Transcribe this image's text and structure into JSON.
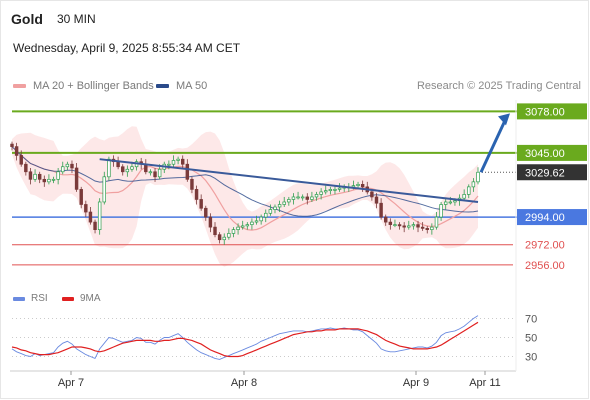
{
  "header": {
    "title": "Gold",
    "timeframe": "30 MIN",
    "datetime": "Wednesday, April 9, 2025 8:55:34 AM CET"
  },
  "legend": {
    "ma20": "MA 20 + Bollinger Bands",
    "ma50": "MA 50",
    "credit": "Research © 2025 Trading Central"
  },
  "rsi_legend": {
    "rsi": "RSI",
    "ma": "9MA"
  },
  "colors": {
    "resistance": "#6aaa1e",
    "support": "#4a78e0",
    "minor_support": "#e05050",
    "last_price": "#333333",
    "ma20": "#f0a0a0",
    "ma50": "#2a4a8a",
    "trendline": "#3a5a9a",
    "candle_up": "#2e9e4e",
    "candle_down": "#7a3a3a",
    "rsi": "#6a8ae0",
    "rsi_ma": "#e02020",
    "arrow": "#2a63b0"
  },
  "chart_data": [
    {
      "type": "candlestick",
      "title": "Gold",
      "x_labels": [
        "Apr 7",
        "Apr 8",
        "Apr 9",
        "Apr 11"
      ],
      "ylim": [
        2940,
        3095
      ],
      "levels": [
        {
          "value": 3078.0,
          "label": "3078.00",
          "kind": "resistance"
        },
        {
          "value": 3045.0,
          "label": "3045.00",
          "kind": "resistance"
        },
        {
          "value": 3029.62,
          "label": "3029.62",
          "kind": "last_price"
        },
        {
          "value": 2994.0,
          "label": "2994.00",
          "kind": "support"
        },
        {
          "value": 2972.0,
          "label": "2972.00",
          "kind": "minor_support"
        },
        {
          "value": 2956.0,
          "label": "2956.00",
          "kind": "minor_support"
        }
      ],
      "closes": [
        3050,
        3043,
        3036,
        3030,
        3024,
        3028,
        3024,
        3022,
        3024,
        3024,
        3030,
        3034,
        3036,
        3033,
        3016,
        3004,
        2998,
        2990,
        2984,
        3006,
        3026,
        3040,
        3038,
        3034,
        3030,
        3032,
        3034,
        3038,
        3036,
        3030,
        3030,
        3026,
        3032,
        3036,
        3036,
        3039,
        3040,
        3036,
        3024,
        3016,
        3008,
        3001,
        2994,
        2986,
        2980,
        2976,
        2978,
        2981,
        2984,
        2986,
        2987,
        2988,
        2990,
        2991,
        2994,
        2997,
        3000,
        3002,
        3004,
        3006,
        3008,
        3010,
        3010,
        3010,
        3008,
        3010,
        3012,
        3014,
        3015,
        3016,
        3016,
        3017,
        3018,
        3018,
        3019,
        3020,
        3018,
        3014,
        3010,
        3005,
        2994,
        2990,
        2988,
        2988,
        2987,
        2986,
        2987,
        2988,
        2986,
        2985,
        2984,
        2986,
        2994,
        3004,
        3006,
        3006,
        3007,
        3009,
        3012,
        3018,
        3022,
        3029.62
      ],
      "ma20_end": 3006,
      "ma50_end": 3002,
      "trendline": {
        "from": 3040,
        "to": 3006
      },
      "arrow_target": 3078.0
    },
    {
      "type": "line",
      "title": "RSI",
      "ylim": [
        20,
        80
      ],
      "ticks": [
        70,
        50,
        30
      ],
      "series": [
        {
          "name": "RSI",
          "values": [
            38,
            35,
            33,
            31,
            30,
            33,
            31,
            32,
            33,
            34,
            40,
            44,
            46,
            43,
            38,
            35,
            32,
            30,
            28,
            38,
            44,
            50,
            49,
            47,
            45,
            46,
            47,
            50,
            49,
            45,
            45,
            43,
            47,
            50,
            50,
            52,
            54,
            50,
            45,
            41,
            37,
            34,
            32,
            30,
            28,
            27,
            29,
            31,
            33,
            35,
            37,
            39,
            41,
            43,
            46,
            48,
            50,
            52,
            54,
            55,
            56,
            57,
            57,
            57,
            56,
            57,
            58,
            59,
            59,
            60,
            59,
            59,
            60,
            59,
            58,
            58,
            56,
            52,
            48,
            44,
            38,
            36,
            35,
            35,
            36,
            37,
            38,
            39,
            40,
            40,
            39,
            41,
            45,
            52,
            55,
            56,
            57,
            59,
            62,
            66,
            70,
            73
          ]
        },
        {
          "name": "9MA",
          "values": [
            40,
            39,
            37,
            36,
            34,
            33,
            32,
            32,
            32,
            33,
            34,
            36,
            38,
            40,
            40,
            40,
            39,
            38,
            36,
            35,
            36,
            38,
            40,
            42,
            44,
            45,
            46,
            47,
            47,
            47,
            47,
            46,
            46,
            47,
            47,
            48,
            49,
            49,
            48,
            47,
            45,
            43,
            40,
            37,
            35,
            33,
            31,
            30,
            30,
            30,
            31,
            33,
            35,
            37,
            39,
            41,
            43,
            45,
            47,
            49,
            51,
            53,
            54,
            55,
            56,
            56,
            57,
            57,
            58,
            58,
            58,
            59,
            59,
            59,
            59,
            59,
            58,
            57,
            55,
            53,
            50,
            47,
            45,
            43,
            41,
            40,
            39,
            38,
            38,
            38,
            38,
            39,
            40,
            42,
            45,
            48,
            51,
            54,
            57,
            60,
            63,
            66
          ]
        }
      ]
    }
  ]
}
